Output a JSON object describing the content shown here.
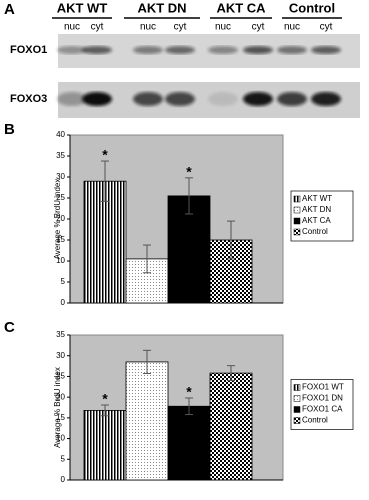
{
  "blot": {
    "label": "A",
    "groups": [
      {
        "name": "AKT WT",
        "lanes": [
          "nuc",
          "cyt"
        ]
      },
      {
        "name": "AKT DN",
        "lanes": [
          "nuc",
          "cyt"
        ]
      },
      {
        "name": "AKT CA",
        "lanes": [
          "nuc",
          "cyt"
        ]
      },
      {
        "name": "Control",
        "lanes": [
          "nuc",
          "cyt"
        ]
      }
    ],
    "rows": [
      "FOXO1",
      "FOXO3"
    ]
  },
  "chart_data": [
    {
      "type": "bar",
      "label": "B",
      "y_label": "Average % BrdU index",
      "ylim": [
        0,
        40
      ],
      "yticks": [
        0,
        5,
        10,
        15,
        20,
        25,
        30,
        35,
        40
      ],
      "series": [
        {
          "name": "AKT WT",
          "pattern": "vertical-stripes",
          "values": [
            29
          ],
          "errors": [
            4.8
          ]
        },
        {
          "name": "AKT DN",
          "pattern": "dots",
          "values": [
            10.5
          ],
          "errors": [
            3.3
          ]
        },
        {
          "name": "AKT CA",
          "pattern": "solid",
          "values": [
            25.5
          ],
          "errors": [
            4.3
          ]
        },
        {
          "name": "Control",
          "pattern": "checker",
          "values": [
            15
          ],
          "errors": [
            4.5
          ]
        }
      ],
      "annotations": [
        {
          "text": "*",
          "series": "AKT WT"
        },
        {
          "text": "*",
          "series": "AKT CA"
        }
      ]
    },
    {
      "type": "bar",
      "label": "C",
      "y_label": "Average % BrdU index",
      "ylim": [
        0,
        35
      ],
      "yticks": [
        0,
        5,
        10,
        15,
        20,
        25,
        30,
        35
      ],
      "series": [
        {
          "name": "FOXO1 WT",
          "pattern": "vertical-stripes",
          "values": [
            16.8
          ],
          "errors": [
            1.3
          ]
        },
        {
          "name": "FOXO1 DN",
          "pattern": "dots",
          "values": [
            28.5
          ],
          "errors": [
            2.8
          ]
        },
        {
          "name": "FOXO1 CA",
          "pattern": "solid",
          "values": [
            17.8
          ],
          "errors": [
            2
          ]
        },
        {
          "name": "Control",
          "pattern": "checker",
          "values": [
            25.8
          ],
          "errors": [
            1.8
          ]
        }
      ],
      "annotations": [
        {
          "text": "*",
          "series": "FOXO1 WT"
        },
        {
          "text": "*",
          "series": "FOXO1 CA"
        }
      ]
    }
  ]
}
